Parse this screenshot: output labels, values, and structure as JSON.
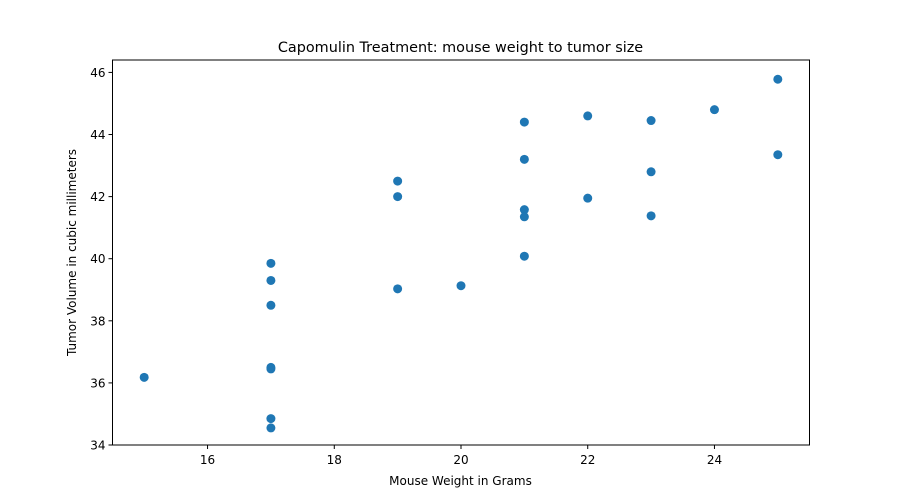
{
  "chart_data": {
    "type": "scatter",
    "title": "Capomulin Treatment: mouse weight to tumor size",
    "xlabel": "Mouse Weight in Grams",
    "ylabel": "Tumor Volume in cubic millimeters",
    "xlim": [
      14.5,
      25.5
    ],
    "ylim": [
      34,
      46.4
    ],
    "xticks": [
      16,
      18,
      20,
      22,
      24
    ],
    "yticks": [
      34,
      36,
      38,
      40,
      42,
      44,
      46
    ],
    "grid": false,
    "marker_color": "#1f77b4",
    "points": [
      {
        "x": 15,
        "y": 36.18
      },
      {
        "x": 17,
        "y": 39.85
      },
      {
        "x": 17,
        "y": 39.3
      },
      {
        "x": 17,
        "y": 38.5
      },
      {
        "x": 17,
        "y": 36.5
      },
      {
        "x": 17,
        "y": 36.45
      },
      {
        "x": 17,
        "y": 34.85
      },
      {
        "x": 17,
        "y": 34.55
      },
      {
        "x": 19,
        "y": 42.5
      },
      {
        "x": 19,
        "y": 42.0
      },
      {
        "x": 19,
        "y": 39.03
      },
      {
        "x": 20,
        "y": 39.13
      },
      {
        "x": 21,
        "y": 44.4
      },
      {
        "x": 21,
        "y": 43.2
      },
      {
        "x": 21,
        "y": 41.58
      },
      {
        "x": 21,
        "y": 41.35
      },
      {
        "x": 21,
        "y": 40.08
      },
      {
        "x": 22,
        "y": 44.6
      },
      {
        "x": 22,
        "y": 41.95
      },
      {
        "x": 23,
        "y": 44.45
      },
      {
        "x": 23,
        "y": 42.8
      },
      {
        "x": 23,
        "y": 41.38
      },
      {
        "x": 24,
        "y": 44.8
      },
      {
        "x": 25,
        "y": 45.78
      },
      {
        "x": 25,
        "y": 43.35
      }
    ]
  }
}
